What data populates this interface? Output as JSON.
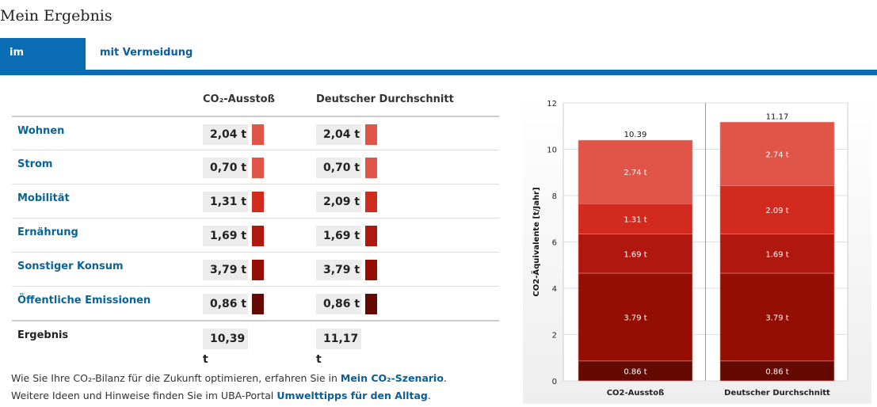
{
  "title": "Mein Ergebnis",
  "tabs": [
    {
      "label": "im Vergleich",
      "active": true
    },
    {
      "label": "mit Vermeidung",
      "active": false
    }
  ],
  "table": {
    "col1_header": "CO₂-Ausstoß",
    "col2_header": "Deutscher Durchschnitt",
    "rows": [
      {
        "label": "Wohnen",
        "own": "2,04 t",
        "avg": "2,04 t",
        "color": "#e05548"
      },
      {
        "label": "Strom",
        "own": "0,70 t",
        "avg": "0,70 t",
        "color": "#e05548"
      },
      {
        "label": "Mobilität",
        "own": "1,31 t",
        "avg": "2,09 t",
        "color": "#d22a1e"
      },
      {
        "label": "Ernährung",
        "own": "1,69 t",
        "avg": "1,69 t",
        "color": "#b0180f"
      },
      {
        "label": "Sonstiger Konsum",
        "own": "3,79 t",
        "avg": "3,79 t",
        "color": "#950e04"
      },
      {
        "label": "Öffentliche Emissionen",
        "own": "0,86 t",
        "avg": "0,86 t",
        "color": "#650a03"
      }
    ],
    "total": {
      "label": "Ergebnis",
      "own": "10,39 t",
      "avg": "11,17 t"
    }
  },
  "footer": {
    "line1_pre": "Wie Sie Ihre CO₂-Bilanz für die Zukunft optimieren, erfahren Sie in ",
    "line1_link": "Mein CO₂-Szenario",
    "line1_post": ".",
    "line2_pre": "Weitere Ideen und Hinweise finden Sie im UBA-Portal ",
    "line2_link": "Umwelttipps für den Alltag",
    "line2_post": "."
  },
  "chart_data": {
    "type": "bar",
    "stacked": true,
    "categories": [
      "CO2-Ausstoß",
      "Deutscher Durchschnitt"
    ],
    "ylabel": "CO2-Äquivalente [t/Jahr]",
    "ylim": [
      0,
      12
    ],
    "yticks": [
      0,
      2,
      4,
      6,
      8,
      10,
      12
    ],
    "grid": true,
    "totals": [
      "10.39",
      "11.17"
    ],
    "series": [
      {
        "values": [
          0.86,
          0.86
        ],
        "labels": [
          "0.86 t",
          "0.86 t"
        ],
        "color": "#650a03"
      },
      {
        "values": [
          3.79,
          3.79
        ],
        "labels": [
          "3.79 t",
          "3.79 t"
        ],
        "color": "#950e04"
      },
      {
        "values": [
          1.69,
          1.69
        ],
        "labels": [
          "1.69 t",
          "1.69 t"
        ],
        "color": "#b0180f"
      },
      {
        "values": [
          1.31,
          2.09
        ],
        "labels": [
          "1.31 t",
          "2.09 t"
        ],
        "color": "#d22a1e"
      },
      {
        "values": [
          2.74,
          2.74
        ],
        "labels": [
          "2.74 t",
          "2.74 t"
        ],
        "color": "#e05548"
      }
    ]
  }
}
